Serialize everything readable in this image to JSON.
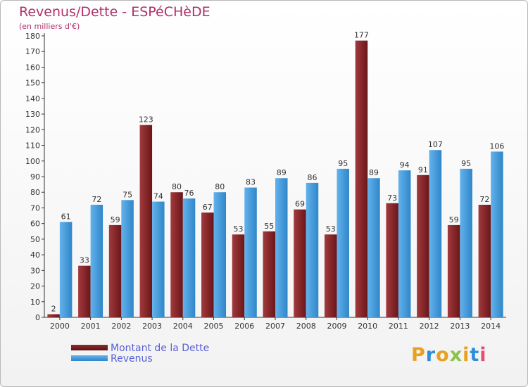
{
  "title": "Revenus/Dette - ESPéCHèDE",
  "subtitle": "(en milliers d'€)",
  "logo": {
    "text": "Proxiti",
    "colors": [
      "#e8a020",
      "#2e8fd8",
      "#e8a020",
      "#8bc34a",
      "#e8a020",
      "#2e8fd8",
      "#e84d6e"
    ]
  },
  "colors": {
    "debt": "#7a1f22",
    "debt_light": "#a23a3d",
    "revenue": "#3d97da",
    "revenue_light": "#63b2ec",
    "title": "#b0306a",
    "legend_text": "#5a60d6"
  },
  "legend": [
    {
      "label": "Montant de la Dette",
      "color": "#7a1f22"
    },
    {
      "label": "Revenus",
      "color": "#3d97da"
    }
  ],
  "chart_data": {
    "type": "bar",
    "title": "Revenus/Dette - ESPéCHèDE",
    "subtitle": "(en milliers d'€)",
    "categories": [
      "2000",
      "2001",
      "2002",
      "2003",
      "2004",
      "2005",
      "2006",
      "2007",
      "2008",
      "2009",
      "2010",
      "2011",
      "2012",
      "2013",
      "2014"
    ],
    "series": [
      {
        "name": "Montant de la Dette",
        "values": [
          2,
          33,
          59,
          123,
          80,
          67,
          53,
          55,
          69,
          53,
          177,
          73,
          91,
          59,
          72
        ]
      },
      {
        "name": "Revenus",
        "values": [
          61,
          72,
          75,
          74,
          76,
          80,
          83,
          89,
          86,
          95,
          89,
          94,
          107,
          95,
          106
        ]
      }
    ],
    "ylim": [
      0,
      180
    ],
    "yticks": [
      0,
      10,
      20,
      30,
      40,
      50,
      60,
      70,
      80,
      90,
      100,
      110,
      120,
      130,
      140,
      150,
      160,
      170,
      180
    ],
    "grid": false,
    "legend_position": "bottom-left"
  }
}
